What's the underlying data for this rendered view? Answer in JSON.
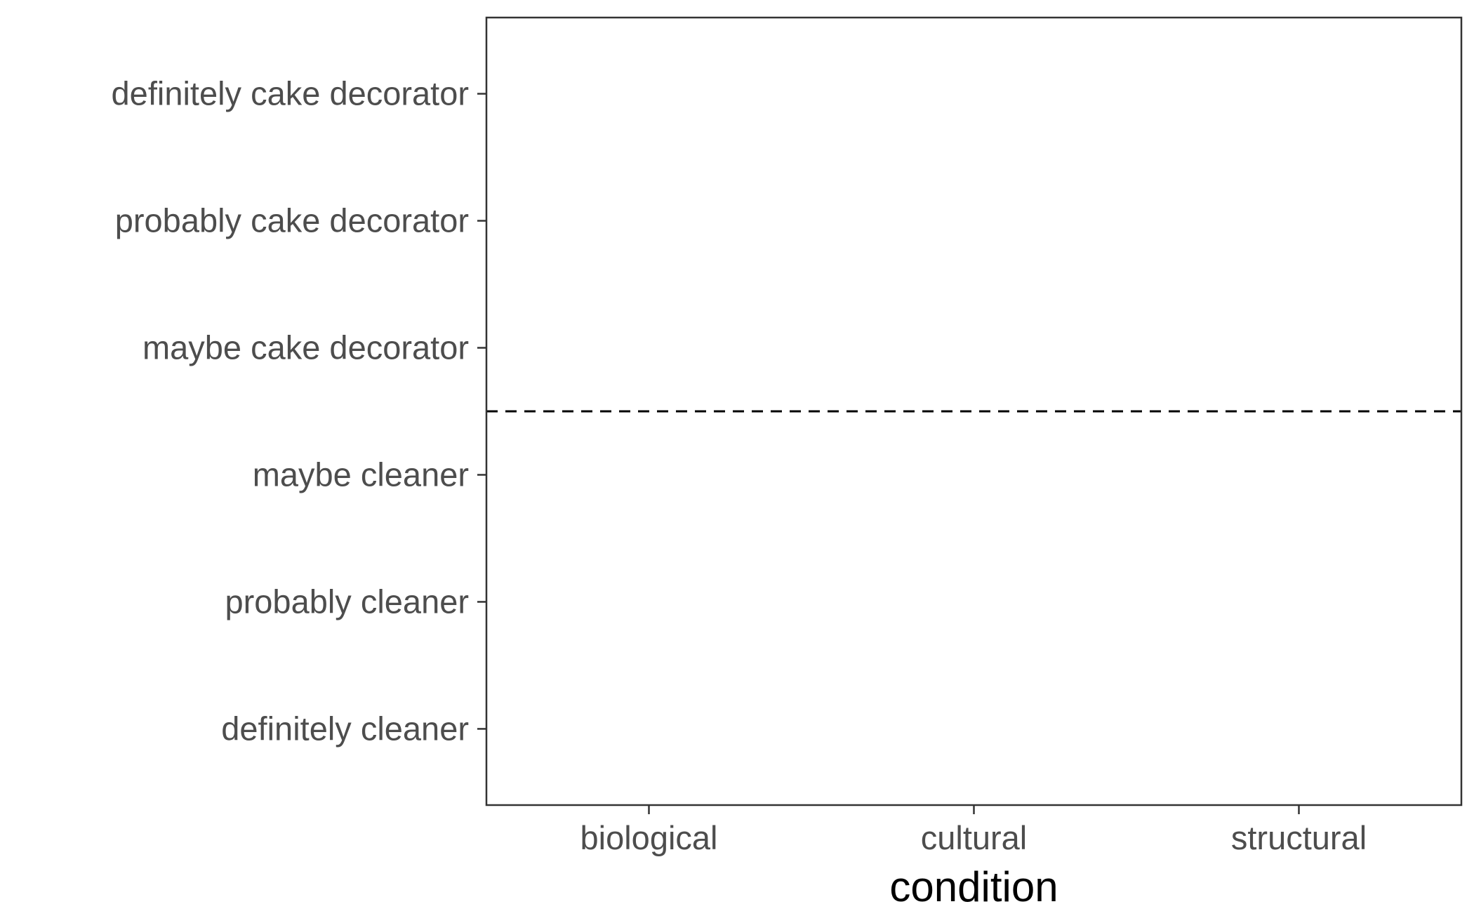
{
  "chart_data": {
    "type": "scatter",
    "xlabel": "condition",
    "ylabel": "",
    "x_categories": [
      "biological",
      "cultural",
      "structural"
    ],
    "y_categories": [
      "definitely cleaner",
      "probably cleaner",
      "maybe cleaner",
      "maybe cake decorator",
      "probably cake decorator",
      "definitely cake decorator"
    ],
    "reference_line": {
      "orientation": "horizontal",
      "y": 3.5,
      "style": "dashed"
    },
    "series": [],
    "grid": false,
    "legend": "none",
    "colors": {
      "axis": "#333333",
      "tick_text": "#4d4d4d",
      "title_text": "#000000",
      "reference_line": "#000000"
    }
  }
}
